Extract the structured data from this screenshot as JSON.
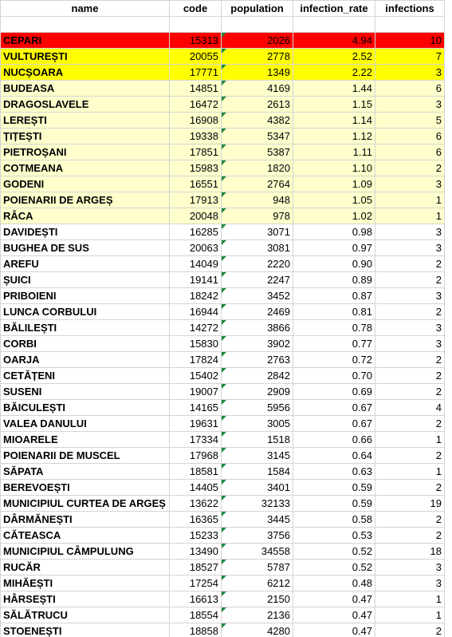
{
  "table": {
    "header": [
      "name",
      "code",
      "population",
      "infection_rate",
      "infections"
    ],
    "rows": [
      [
        "CEPARI",
        "15313",
        "2026",
        "4.94",
        "10"
      ],
      [
        "VULTUREȘTI",
        "20055",
        "2778",
        "2.52",
        "7"
      ],
      [
        "NUCȘOARA",
        "17771",
        "1349",
        "2.22",
        "3"
      ],
      [
        "BUDEASA",
        "14851",
        "4169",
        "1.44",
        "6"
      ],
      [
        "DRAGOSLAVELE",
        "16472",
        "2613",
        "1.15",
        "3"
      ],
      [
        "LEREȘTI",
        "16908",
        "4382",
        "1.14",
        "5"
      ],
      [
        "ȚIȚEȘTI",
        "19338",
        "5347",
        "1.12",
        "6"
      ],
      [
        "PIETROȘANI",
        "17851",
        "5387",
        "1.11",
        "6"
      ],
      [
        "COTMEANA",
        "15983",
        "1820",
        "1.10",
        "2"
      ],
      [
        "GODENI",
        "16551",
        "2764",
        "1.09",
        "3"
      ],
      [
        "POIENARII DE ARGEȘ",
        "17913",
        "948",
        "1.05",
        "1"
      ],
      [
        "RÂCA",
        "20048",
        "978",
        "1.02",
        "1"
      ],
      [
        "DAVIDEȘTI",
        "16285",
        "3071",
        "0.98",
        "3"
      ],
      [
        "BUGHEA DE SUS",
        "20063",
        "3081",
        "0.97",
        "3"
      ],
      [
        "AREFU",
        "14049",
        "2220",
        "0.90",
        "2"
      ],
      [
        "ȘUICI",
        "19141",
        "2247",
        "0.89",
        "2"
      ],
      [
        "PRIBOIENI",
        "18242",
        "3452",
        "0.87",
        "3"
      ],
      [
        "LUNCA CORBULUI",
        "16944",
        "2469",
        "0.81",
        "2"
      ],
      [
        "BĂLILEȘTI",
        "14272",
        "3866",
        "0.78",
        "3"
      ],
      [
        "CORBI",
        "15830",
        "3902",
        "0.77",
        "3"
      ],
      [
        "OARJA",
        "17824",
        "2763",
        "0.72",
        "2"
      ],
      [
        "CETĂȚENI",
        "15402",
        "2842",
        "0.70",
        "2"
      ],
      [
        "SUSENI",
        "19007",
        "2909",
        "0.69",
        "2"
      ],
      [
        "BĂICULEȘTI",
        "14165",
        "5956",
        "0.67",
        "4"
      ],
      [
        "VALEA DANULUI",
        "19631",
        "3005",
        "0.67",
        "2"
      ],
      [
        "MIOARELE",
        "17334",
        "1518",
        "0.66",
        "1"
      ],
      [
        "POIENARII DE MUSCEL",
        "17968",
        "3145",
        "0.64",
        "2"
      ],
      [
        "SĂPATA",
        "18581",
        "1584",
        "0.63",
        "1"
      ],
      [
        "BEREVOEȘTI",
        "14405",
        "3401",
        "0.59",
        "2"
      ],
      [
        "MUNICIPIUL CURTEA DE ARGEȘ",
        "13622",
        "32133",
        "0.59",
        "19"
      ],
      [
        "DÂRMĂNEȘTI",
        "16365",
        "3445",
        "0.58",
        "2"
      ],
      [
        "CĂTEASCA",
        "15233",
        "3756",
        "0.53",
        "2"
      ],
      [
        "MUNICIPIUL CÂMPULUNG",
        "13490",
        "34558",
        "0.52",
        "18"
      ],
      [
        "RUCĂR",
        "18527",
        "5787",
        "0.52",
        "3"
      ],
      [
        "MIHĂEȘTI",
        "17254",
        "6212",
        "0.48",
        "3"
      ],
      [
        "HÂRSEȘTI",
        "16613",
        "2150",
        "0.47",
        "1"
      ],
      [
        "SĂLĂTRUCU",
        "18554",
        "2136",
        "0.47",
        "1"
      ],
      [
        "STOENEȘTI",
        "18858",
        "4280",
        "0.47",
        "2"
      ]
    ],
    "row_fills": [
      "#ff0000",
      "#ffff00",
      "#ffff00",
      "#ffffcc",
      "#ffffcc",
      "#ffffcc",
      "#ffffcc",
      "#ffffcc",
      "#ffffcc",
      "#ffffcc",
      "#ffffcc",
      "#ffffcc",
      null,
      null,
      null,
      null,
      null,
      null,
      null,
      null,
      null,
      null,
      null,
      null,
      null,
      null,
      null,
      null,
      null,
      null,
      null,
      null,
      null,
      null,
      null,
      null,
      null,
      null
    ]
  }
}
